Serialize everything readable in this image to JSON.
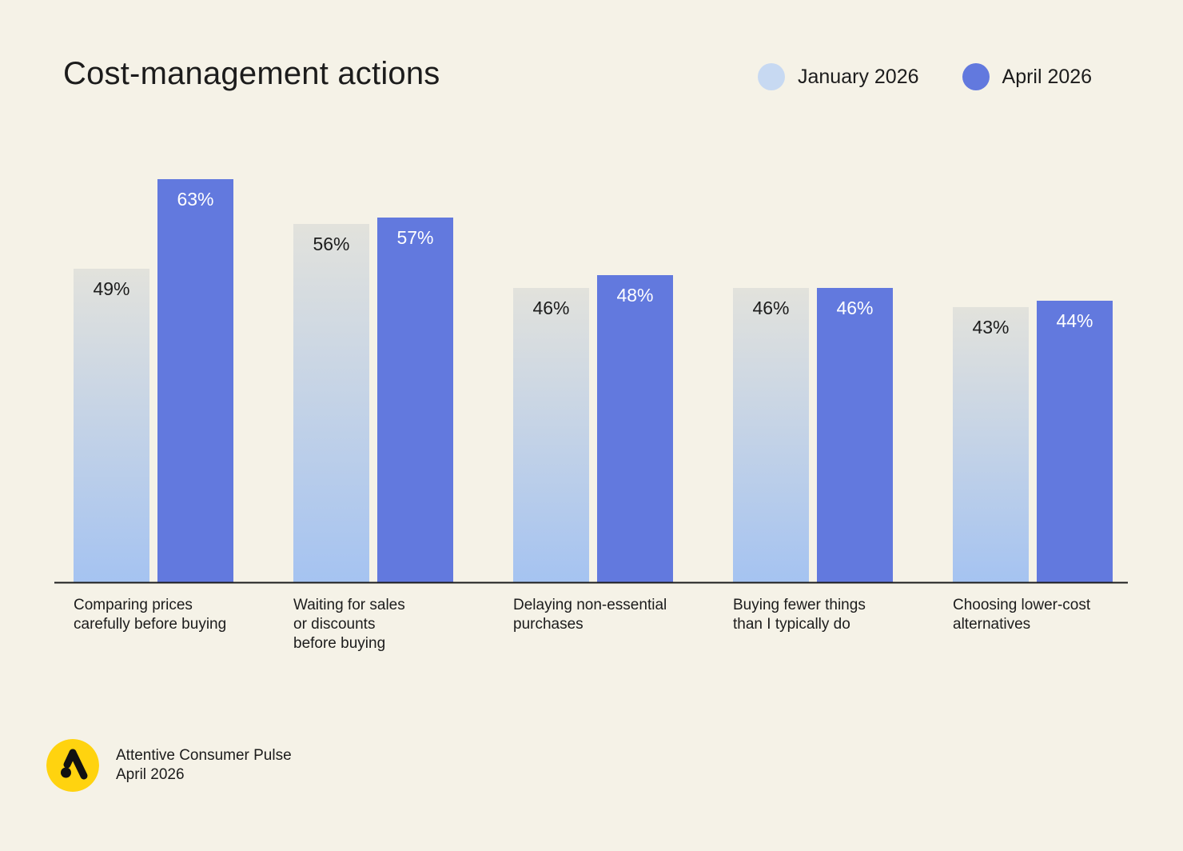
{
  "chart_data": {
    "type": "bar",
    "title": "Cost-management actions",
    "categories": [
      "Comparing prices\ncarefully before buying",
      "Waiting for sales\nor discounts\nbefore buying",
      "Delaying non-essential\npurchases",
      "Buying fewer things\nthan I typically do",
      "Choosing lower-cost\nalternatives"
    ],
    "series": [
      {
        "name": "January 2026",
        "values": [
          49,
          56,
          46,
          46,
          43
        ],
        "labels": [
          "49%",
          "56%",
          "46%",
          "46%",
          "43%"
        ]
      },
      {
        "name": "April 2026",
        "values": [
          63,
          57,
          48,
          46,
          44
        ],
        "labels": [
          "63%",
          "57%",
          "48%",
          "46%",
          "44%"
        ]
      }
    ],
    "ylim": [
      0,
      63
    ],
    "grid": false,
    "legend": "top-right",
    "value_unit": "%"
  },
  "colors": {
    "background": "#f5f2e7",
    "january_top": "#e2e2dc",
    "january_bottom": "#a5c3f1",
    "january_legend": "#c7d9f2",
    "april": "#6279de",
    "axis": "#1c1c1c",
    "logo_bg": "#ffd30f"
  },
  "footer": {
    "line1": "Attentive Consumer Pulse",
    "line2": "April 2026",
    "logo_icon": "attentive-logo-icon"
  }
}
